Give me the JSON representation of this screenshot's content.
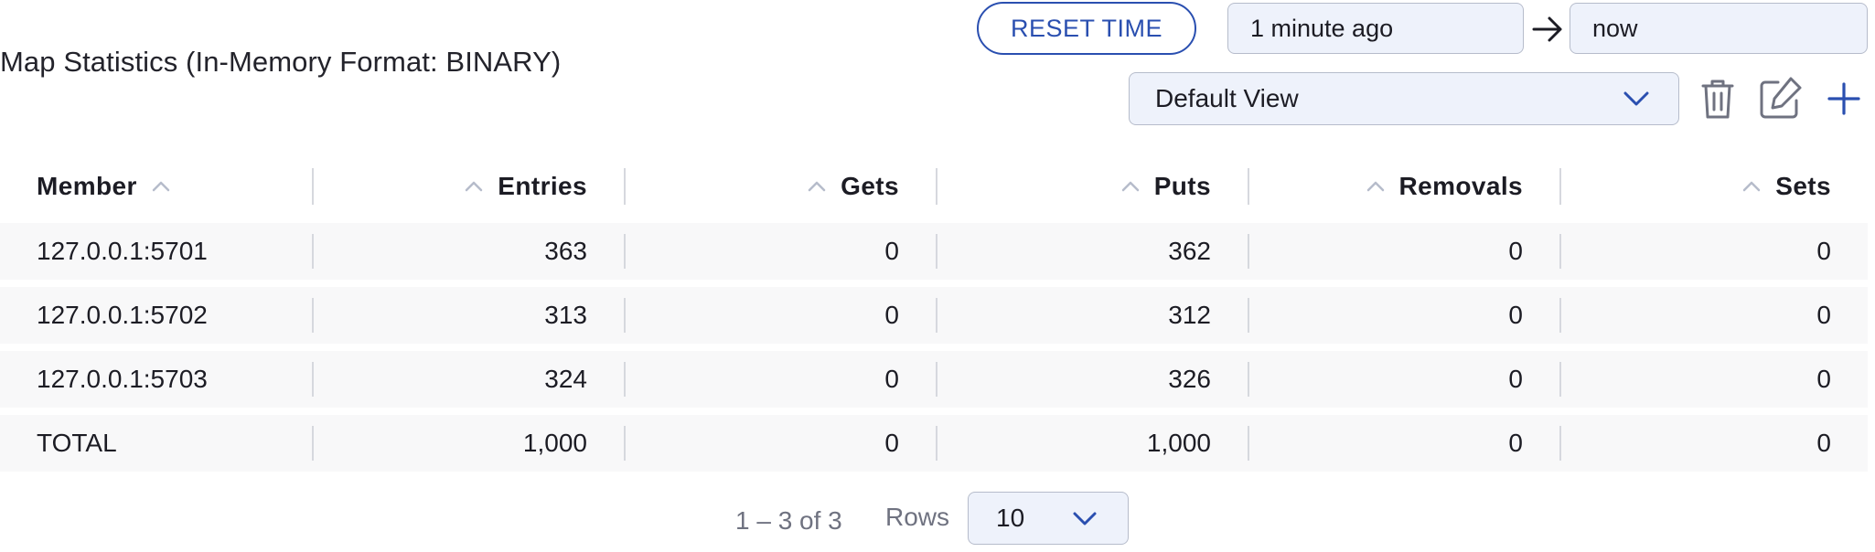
{
  "title": "Map Statistics (In-Memory Format: BINARY)",
  "time": {
    "reset_label": "RESET TIME",
    "from_value": "1 minute ago",
    "to_value": "now"
  },
  "view": {
    "selected": "Default View",
    "icons": [
      "trash-icon",
      "edit-icon",
      "plus-icon"
    ]
  },
  "table": {
    "columns": [
      "Member",
      "Entries",
      "Gets",
      "Puts",
      "Removals",
      "Sets"
    ],
    "rows": [
      [
        "127.0.0.1:5701",
        "363",
        "0",
        "362",
        "0",
        "0"
      ],
      [
        "127.0.0.1:5702",
        "313",
        "0",
        "312",
        "0",
        "0"
      ],
      [
        "127.0.0.1:5703",
        "324",
        "0",
        "326",
        "0",
        "0"
      ],
      [
        "TOTAL",
        "1,000",
        "0",
        "1,000",
        "0",
        "0"
      ]
    ]
  },
  "pagination": {
    "range": "1 – 3 of 3",
    "rows_label": "Rows",
    "rows_value": "10"
  },
  "colors": {
    "accent": "#2a4fb0",
    "input_bg": "#eef2fb",
    "row_bg": "#f8f8f9"
  }
}
